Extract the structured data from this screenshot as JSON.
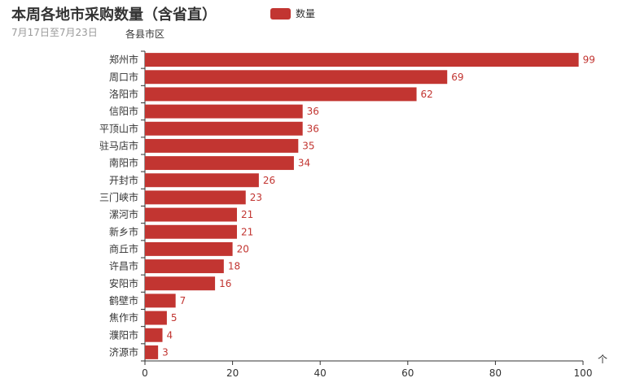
{
  "header": {
    "title": "本周各地市采购数量（含省直）",
    "subtitle": "7月17日至7月23日"
  },
  "legend": {
    "label": "数量",
    "color": "#c23531"
  },
  "toolbox": {
    "icon": "scroll-up-icon",
    "glyph": "个"
  },
  "chart_data": {
    "type": "bar",
    "orientation": "horizontal",
    "ylabel": "各县市区",
    "xlabel": "",
    "xlim": [
      0,
      100
    ],
    "xticks": [
      0,
      20,
      40,
      60,
      80,
      100
    ],
    "categories": [
      "郑州市",
      "周口市",
      "洛阳市",
      "信阳市",
      "平顶山市",
      "驻马店市",
      "南阳市",
      "开封市",
      "三门峡市",
      "漯河市",
      "新乡市",
      "商丘市",
      "许昌市",
      "安阳市",
      "鹤壁市",
      "焦作市",
      "濮阳市",
      "济源市"
    ],
    "series": [
      {
        "name": "数量",
        "color": "#c23531",
        "values": [
          99,
          69,
          62,
          36,
          36,
          35,
          34,
          26,
          23,
          21,
          21,
          20,
          18,
          16,
          7,
          5,
          4,
          3
        ]
      }
    ],
    "grid": false,
    "legend_position": "top-center",
    "data_labels": "right"
  }
}
